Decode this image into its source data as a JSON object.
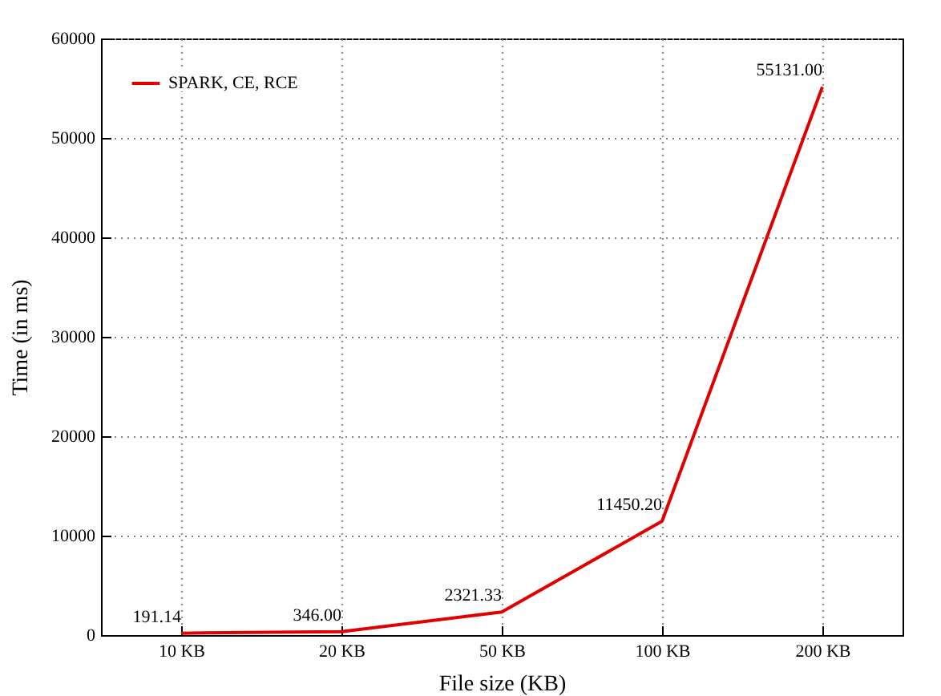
{
  "chart_data": {
    "type": "line",
    "xlabel": "File size (KB)",
    "ylabel": "Time (in ms)",
    "categories": [
      "10 KB",
      "20 KB",
      "50 KB",
      "100 KB",
      "200 KB"
    ],
    "series": [
      {
        "name": "SPARK, CE, RCE",
        "color": "#e00000",
        "values": [
          191.14,
          346.0,
          2321.33,
          11450.2,
          55131.0
        ],
        "value_labels": [
          "191.14",
          "346.00",
          "2321.33",
          "11450.20",
          "55131.00"
        ]
      }
    ],
    "ylim": [
      0,
      60000
    ],
    "yticks": [
      0,
      10000,
      20000,
      30000,
      40000,
      50000,
      60000
    ],
    "grid": true,
    "legend": "top left",
    "marker": "none",
    "line_style": "solid"
  }
}
